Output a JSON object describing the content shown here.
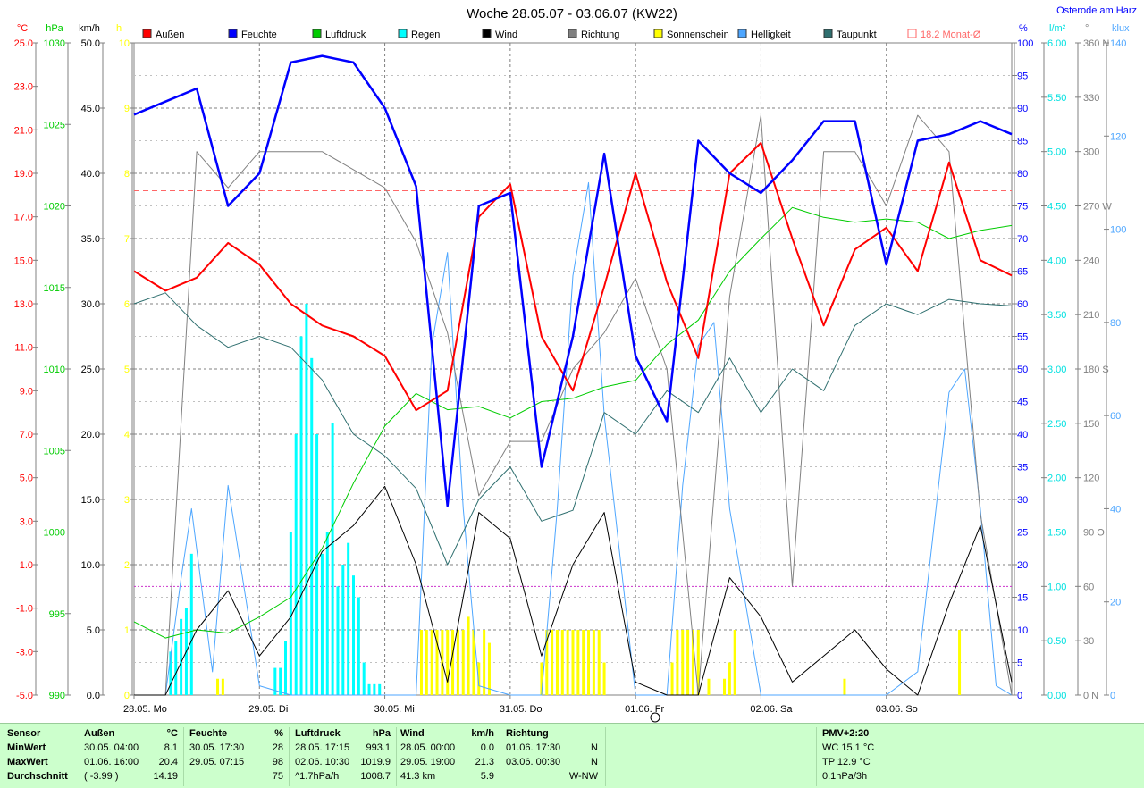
{
  "title": "Woche 28.05.07 - 03.06.07 (KW22)",
  "station": "Osterode am Harz",
  "legend": [
    {
      "label": "Außen",
      "color": "#ff0000"
    },
    {
      "label": "Feuchte",
      "color": "#0000ff"
    },
    {
      "label": "Luftdruck",
      "color": "#00cc00"
    },
    {
      "label": "Regen",
      "color": "#00ffff"
    },
    {
      "label": "Wind",
      "color": "#000000"
    },
    {
      "label": "Richtung",
      "color": "#808080"
    },
    {
      "label": "Sonnenschein",
      "color": "#ffff00"
    },
    {
      "label": "Helligkeit",
      "color": "#4da6ff"
    },
    {
      "label": "Taupunkt",
      "color": "#2f6f6f"
    },
    {
      "label": "18.2 Monat-Ø",
      "color": "#ff6666"
    }
  ],
  "axes": {
    "temp": {
      "unit": "°C",
      "color": "#ff0000",
      "ticks": [
        "25.0",
        "23.0",
        "21.0",
        "19.0",
        "17.0",
        "15.0",
        "13.0",
        "11.0",
        "9.0",
        "7.0",
        "5.0",
        "3.0",
        "1.0",
        "-1.0",
        "-3.0",
        "-5.0"
      ]
    },
    "pressure": {
      "unit": "hPa",
      "color": "#00cc00",
      "ticks": [
        "1030",
        "1025",
        "1020",
        "1015",
        "1010",
        "1005",
        "1000",
        "995",
        "990"
      ]
    },
    "wind": {
      "unit": "km/h",
      "color": "#000000",
      "ticks": [
        "50.0",
        "45.0",
        "40.0",
        "35.0",
        "30.0",
        "25.0",
        "20.0",
        "15.0",
        "10.0",
        "5.0",
        "0.0"
      ]
    },
    "sun": {
      "unit": "h",
      "color": "#ffff00",
      "ticks": [
        "10",
        "9",
        "8",
        "7",
        "6",
        "5",
        "4",
        "3",
        "2",
        "1",
        "0"
      ]
    },
    "humidity": {
      "unit": "%",
      "color": "#0000ff",
      "ticks": [
        "100",
        "95",
        "90",
        "85",
        "80",
        "75",
        "70",
        "65",
        "60",
        "55",
        "50",
        "45",
        "40",
        "35",
        "30",
        "25",
        "20",
        "15",
        "10",
        "5",
        "0"
      ]
    },
    "rain": {
      "unit": "l/m²",
      "color": "#00e0e0",
      "ticks": [
        "6.00",
        "5.50",
        "5.00",
        "4.50",
        "4.00",
        "3.50",
        "3.00",
        "2.50",
        "2.00",
        "1.50",
        "1.00",
        "0.50",
        "0.00"
      ]
    },
    "direction": {
      "unit": "°",
      "color": "#808080",
      "ticks": [
        "360 N",
        "330",
        "300",
        "270 W",
        "240",
        "210",
        "180 S",
        "150",
        "120",
        "90 O",
        "60",
        "30",
        "0 N"
      ]
    },
    "light": {
      "unit": "klux",
      "color": "#4da6ff",
      "ticks": [
        "140",
        "120",
        "100",
        "80",
        "60",
        "40",
        "20",
        "0"
      ]
    }
  },
  "x_labels": [
    "28.05. Mo",
    "29.05. Di",
    "30.05. Mi",
    "31.05. Do",
    "01.06. Fr",
    "02.06. Sa",
    "03.06. So"
  ],
  "chart_data": {
    "type": "line",
    "x_range": [
      "28.05.07 00:00",
      "04.06.07 00:00"
    ],
    "monthly_average_temp": 18.2,
    "series": [
      {
        "name": "Außen",
        "unit": "°C",
        "color": "#ff0000",
        "x": [
          0,
          6,
          12,
          18,
          24,
          30,
          36,
          42,
          48,
          54,
          60,
          66,
          72,
          78,
          84,
          90,
          96,
          102,
          108,
          114,
          120,
          126,
          132,
          138,
          144,
          150,
          156,
          162,
          168
        ],
        "values": [
          14.5,
          13.6,
          14.2,
          15.8,
          14.8,
          13.0,
          12.0,
          11.5,
          10.6,
          8.1,
          9.0,
          17.0,
          18.5,
          11.5,
          9.0,
          13.8,
          19.0,
          14.0,
          10.5,
          19.0,
          20.4,
          16.0,
          12.0,
          15.5,
          16.5,
          14.5,
          19.5,
          15.0,
          14.3
        ]
      },
      {
        "name": "Feuchte",
        "unit": "%",
        "color": "#0000ff",
        "x": [
          0,
          6,
          12,
          18,
          24,
          30,
          36,
          42,
          48,
          54,
          60,
          66,
          72,
          78,
          84,
          90,
          96,
          102,
          108,
          114,
          120,
          126,
          132,
          138,
          144,
          150,
          156,
          162,
          168
        ],
        "values": [
          89,
          91,
          93,
          75,
          80,
          97,
          98,
          97,
          90,
          78,
          29,
          75,
          77,
          35,
          55,
          83,
          52,
          42,
          85,
          80,
          77,
          82,
          88,
          88,
          66,
          85,
          86,
          88,
          86
        ]
      },
      {
        "name": "Luftdruck",
        "unit": "hPa",
        "color": "#00cc00",
        "x": [
          0,
          6,
          12,
          18,
          24,
          30,
          36,
          42,
          48,
          54,
          60,
          66,
          72,
          78,
          84,
          90,
          96,
          102,
          108,
          114,
          120,
          126,
          132,
          138,
          144,
          150,
          156,
          162,
          168
        ],
        "values": [
          994.5,
          993.5,
          994,
          993.8,
          994.8,
          996,
          999,
          1003,
          1006.5,
          1008.5,
          1007.5,
          1007.7,
          1007,
          1008,
          1008.2,
          1008.9,
          1009.3,
          1011.5,
          1013,
          1016,
          1018,
          1019.9,
          1019.3,
          1019,
          1019.2,
          1019,
          1018,
          1018.5,
          1018.8
        ]
      },
      {
        "name": "Wind",
        "unit": "km/h",
        "color": "#000000",
        "x": [
          0,
          6,
          12,
          18,
          24,
          30,
          36,
          42,
          48,
          54,
          60,
          66,
          72,
          78,
          84,
          90,
          96,
          102,
          108,
          114,
          120,
          126,
          132,
          138,
          144,
          150,
          156,
          162,
          168
        ],
        "values": [
          0,
          0,
          5,
          8,
          3,
          6,
          11,
          13,
          16,
          10,
          1,
          14,
          12,
          3,
          10,
          14,
          1,
          0,
          0,
          9,
          6,
          1,
          3,
          5,
          2,
          0,
          7,
          13,
          1
        ]
      },
      {
        "name": "Taupunkt",
        "unit": "°C",
        "color": "#2f6f6f",
        "x": [
          0,
          6,
          12,
          18,
          24,
          30,
          36,
          42,
          48,
          54,
          60,
          66,
          72,
          78,
          84,
          90,
          96,
          102,
          108,
          114,
          120,
          126,
          132,
          138,
          144,
          150,
          156,
          162,
          168
        ],
        "values": [
          13.0,
          13.5,
          12.0,
          11.0,
          11.5,
          11.0,
          9.5,
          7.0,
          6.0,
          4.5,
          1.0,
          4.0,
          5.5,
          3.0,
          3.5,
          8.0,
          7.0,
          9.0,
          8.0,
          10.5,
          8.0,
          10.0,
          9.0,
          12.0,
          13.0,
          12.5,
          13.2,
          13.0,
          12.9
        ]
      },
      {
        "name": "Richtung",
        "unit": "°",
        "color": "#808080",
        "x": [
          0,
          6,
          12,
          18,
          24,
          30,
          36,
          42,
          48,
          54,
          60,
          66,
          72,
          78,
          84,
          90,
          96,
          102,
          108,
          114,
          120,
          126,
          132,
          138,
          144,
          150,
          156,
          162,
          168
        ],
        "values": [
          0,
          0,
          300,
          280,
          300,
          300,
          300,
          290,
          280,
          250,
          200,
          110,
          140,
          140,
          180,
          200,
          230,
          180,
          0,
          220,
          320,
          60,
          300,
          300,
          270,
          320,
          300,
          100,
          0
        ]
      },
      {
        "name": "Regen",
        "unit": "l/m²",
        "color": "#00ffff",
        "x": [
          7,
          8,
          9,
          10,
          11,
          27,
          28,
          29,
          30,
          31,
          32,
          33,
          34,
          35,
          36,
          37,
          38,
          39,
          40,
          41,
          42,
          43,
          44,
          45,
          46,
          47
        ],
        "values": [
          0.4,
          0.5,
          0.7,
          0.8,
          1.3,
          0.25,
          0.25,
          0.5,
          1.5,
          2.4,
          3.3,
          3.6,
          3.1,
          2.4,
          1.3,
          1.5,
          2.5,
          1.0,
          1.2,
          1.4,
          1.1,
          0.9,
          0.3,
          0.1,
          0.1,
          0.1
        ]
      },
      {
        "name": "Sonnenschein",
        "unit": "h",
        "color": "#ffff00",
        "x": [
          16,
          17,
          55,
          56,
          57,
          58,
          59,
          60,
          61,
          62,
          63,
          64,
          65,
          66,
          67,
          68,
          78,
          79,
          80,
          81,
          82,
          83,
          84,
          85,
          86,
          87,
          88,
          89,
          90,
          103,
          104,
          105,
          106,
          107,
          108,
          110,
          113,
          114,
          115,
          136,
          158
        ],
        "values": [
          0.25,
          0.25,
          1,
          1,
          1,
          1,
          1,
          1,
          1,
          1,
          1,
          1.2,
          1,
          0.5,
          1,
          0.8,
          0.5,
          1,
          1,
          1,
          1,
          1,
          1,
          1,
          1,
          1,
          1,
          1,
          0.5,
          0.5,
          1,
          1,
          1,
          1,
          1,
          0.25,
          0.25,
          0.5,
          1,
          0.25,
          1
        ]
      },
      {
        "name": "Helligkeit",
        "unit": "klux",
        "color": "#4da6ff",
        "x": [
          0,
          6,
          9,
          11,
          15,
          18,
          24,
          30,
          36,
          42,
          48,
          54,
          57,
          60,
          63,
          66,
          72,
          78,
          81,
          84,
          87,
          90,
          96,
          102,
          105,
          108,
          111,
          114,
          117,
          120,
          126,
          132,
          138,
          144,
          150,
          156,
          159,
          162,
          165,
          168
        ],
        "values": [
          0,
          0,
          25,
          40,
          5,
          45,
          2,
          0,
          0,
          0,
          0,
          0,
          75,
          95,
          40,
          2,
          0,
          0,
          40,
          90,
          110,
          60,
          0,
          0,
          45,
          75,
          80,
          40,
          20,
          0,
          0,
          0,
          0,
          0,
          5,
          65,
          70,
          40,
          2,
          0
        ]
      }
    ]
  },
  "stats": {
    "sensor": {
      "header": "Sensor",
      "min": "MinWert",
      "max": "MaxWert",
      "avg": "Durchschnitt"
    },
    "aussen": {
      "header": "Außen",
      "unit": "°C",
      "min_time": "30.05.  04:00",
      "min_val": "8.1",
      "max_time": "01.06.  16:00",
      "max_val": "20.4",
      "avg_note": "( -3.99 )",
      "avg_val": "14.19"
    },
    "feuchte": {
      "header": "Feuchte",
      "unit": "%",
      "min_time": "30.05.  17:30",
      "min_val": "28",
      "max_time": "29.05.  07:15",
      "max_val": "98",
      "avg_val": "75"
    },
    "luftdruck": {
      "header": "Luftdruck",
      "unit": "hPa",
      "min_time": "28.05.  17:15",
      "min_val": "993.1",
      "max_time": "02.06.  10:30",
      "max_val": "1019.9",
      "avg_note": "^1.7hPa/h",
      "avg_val": "1008.7"
    },
    "wind": {
      "header": "Wind",
      "unit": "km/h",
      "min_time": "28.05.  00:00",
      "min_val": "0.0",
      "max_time": "29.05.  19:00",
      "max_val": "21.3",
      "avg_note": "41.3 km",
      "avg_val": "5.9"
    },
    "richtung": {
      "header": "Richtung",
      "min_time": "01.06.  17:30",
      "min_val": "N",
      "max_time": "03.06.  00:30",
      "max_val": "N",
      "avg_val": "W-NW"
    },
    "pmv": {
      "header": "PMV+2:20",
      "wc": "WC 15.1 °C",
      "tp": "TP 12.9 °C",
      "trend": "0.1hPa/3h"
    }
  }
}
